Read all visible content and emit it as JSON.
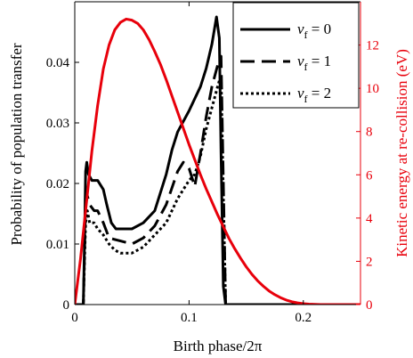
{
  "chart_data": {
    "type": "line",
    "xlabel": "Birth phase/2π",
    "ylabel_left": "Probability of population transfer",
    "ylabel_right": "Kinetic energy at re-collision (eV)",
    "xlim": [
      0,
      0.25
    ],
    "ylim_left": [
      0,
      0.05
    ],
    "ylim_right": [
      0,
      14
    ],
    "x_ticks": [
      0,
      0.1,
      0.2
    ],
    "x_tick_labels": [
      "0",
      "0.1",
      "0.2"
    ],
    "y_left_ticks": [
      0,
      0.01,
      0.02,
      0.03,
      0.04
    ],
    "y_left_tick_labels": [
      "0",
      "0.01",
      "0.02",
      "0.03",
      "0.04"
    ],
    "y_right_ticks": [
      0,
      2,
      4,
      6,
      8,
      10,
      12
    ],
    "y_right_tick_labels": [
      "0",
      "2",
      "4",
      "6",
      "8",
      "10",
      "12"
    ],
    "legend_position": "top-right",
    "series": [
      {
        "name": "ν_f = 0",
        "legend_base": "ν",
        "legend_sub": "f",
        "legend_rest": " = 0",
        "axis": "left",
        "color": "#000000",
        "style": "solid",
        "x": [
          0.0,
          0.0075,
          0.0085,
          0.0095,
          0.0105,
          0.012,
          0.015,
          0.02,
          0.025,
          0.028,
          0.032,
          0.036,
          0.04,
          0.05,
          0.06,
          0.07,
          0.08,
          0.085,
          0.09,
          0.1,
          0.11,
          0.115,
          0.12,
          0.124,
          0.1265,
          0.128,
          0.13,
          0.132,
          0.133,
          0.25
        ],
        "y": [
          0.0,
          0.0,
          0.01,
          0.022,
          0.0235,
          0.0215,
          0.0205,
          0.0205,
          0.019,
          0.0165,
          0.0135,
          0.0125,
          0.0125,
          0.0125,
          0.0135,
          0.0155,
          0.0215,
          0.0255,
          0.0285,
          0.032,
          0.036,
          0.039,
          0.043,
          0.0475,
          0.044,
          0.025,
          0.003,
          0.0,
          0.0,
          0.0
        ]
      },
      {
        "name": "ν_f = 1",
        "legend_base": "ν",
        "legend_sub": "f",
        "legend_rest": " = 1",
        "axis": "left",
        "color": "#000000",
        "style": "dashed",
        "x": [
          0.0,
          0.0075,
          0.0085,
          0.0095,
          0.011,
          0.013,
          0.017,
          0.02,
          0.025,
          0.03,
          0.04,
          0.05,
          0.06,
          0.07,
          0.08,
          0.09,
          0.095,
          0.1,
          0.105,
          0.11,
          0.115,
          0.12,
          0.125,
          0.128,
          0.13,
          0.132,
          0.25
        ],
        "y": [
          0.0,
          0.0,
          0.008,
          0.0165,
          0.018,
          0.0165,
          0.0155,
          0.0155,
          0.0135,
          0.011,
          0.0105,
          0.01,
          0.011,
          0.013,
          0.0165,
          0.022,
          0.0235,
          0.0225,
          0.0195,
          0.025,
          0.031,
          0.036,
          0.0395,
          0.041,
          0.02,
          0.0,
          0.0
        ]
      },
      {
        "name": "ν_f = 2",
        "legend_base": "ν",
        "legend_sub": "f",
        "legend_rest": " = 2",
        "axis": "left",
        "color": "#000000",
        "style": "dotted",
        "x": [
          0.0,
          0.0075,
          0.0085,
          0.0095,
          0.011,
          0.013,
          0.017,
          0.02,
          0.025,
          0.03,
          0.035,
          0.04,
          0.05,
          0.06,
          0.07,
          0.08,
          0.09,
          0.1,
          0.105,
          0.11,
          0.115,
          0.12,
          0.125,
          0.128,
          0.13,
          0.132,
          0.25
        ],
        "y": [
          0.0,
          0.0,
          0.007,
          0.0135,
          0.0155,
          0.0135,
          0.0135,
          0.0125,
          0.0115,
          0.01,
          0.009,
          0.0085,
          0.0085,
          0.0095,
          0.0115,
          0.0135,
          0.0175,
          0.0205,
          0.0215,
          0.0245,
          0.029,
          0.0325,
          0.036,
          0.038,
          0.018,
          0.0,
          0.0
        ]
      },
      {
        "name": "Kinetic energy",
        "axis": "right",
        "color": "#e8000b",
        "style": "solid",
        "x": [
          0.0,
          0.005,
          0.01,
          0.015,
          0.02,
          0.025,
          0.03,
          0.035,
          0.04,
          0.045,
          0.05,
          0.055,
          0.06,
          0.065,
          0.07,
          0.075,
          0.08,
          0.085,
          0.09,
          0.095,
          0.1,
          0.105,
          0.11,
          0.115,
          0.12,
          0.125,
          0.13,
          0.135,
          0.14,
          0.145,
          0.15,
          0.155,
          0.16,
          0.165,
          0.17,
          0.175,
          0.18,
          0.185,
          0.19,
          0.195,
          0.2,
          0.205,
          0.21,
          0.215,
          0.22,
          0.225,
          0.23,
          0.235,
          0.24,
          0.245,
          0.25
        ],
        "y": [
          0.0,
          2.1,
          4.6,
          7.1,
          9.2,
          10.9,
          12.0,
          12.7,
          13.05,
          13.2,
          13.15,
          13.0,
          12.7,
          12.25,
          11.7,
          11.1,
          10.4,
          9.65,
          8.9,
          8.15,
          7.4,
          6.7,
          6.0,
          5.35,
          4.75,
          4.15,
          3.6,
          3.05,
          2.58,
          2.15,
          1.75,
          1.4,
          1.1,
          0.85,
          0.63,
          0.46,
          0.32,
          0.21,
          0.13,
          0.08,
          0.04,
          0.02,
          0.01,
          0.0,
          0.0,
          0.0,
          0.0,
          0.0,
          0.0,
          0.0,
          0.0
        ]
      }
    ]
  }
}
